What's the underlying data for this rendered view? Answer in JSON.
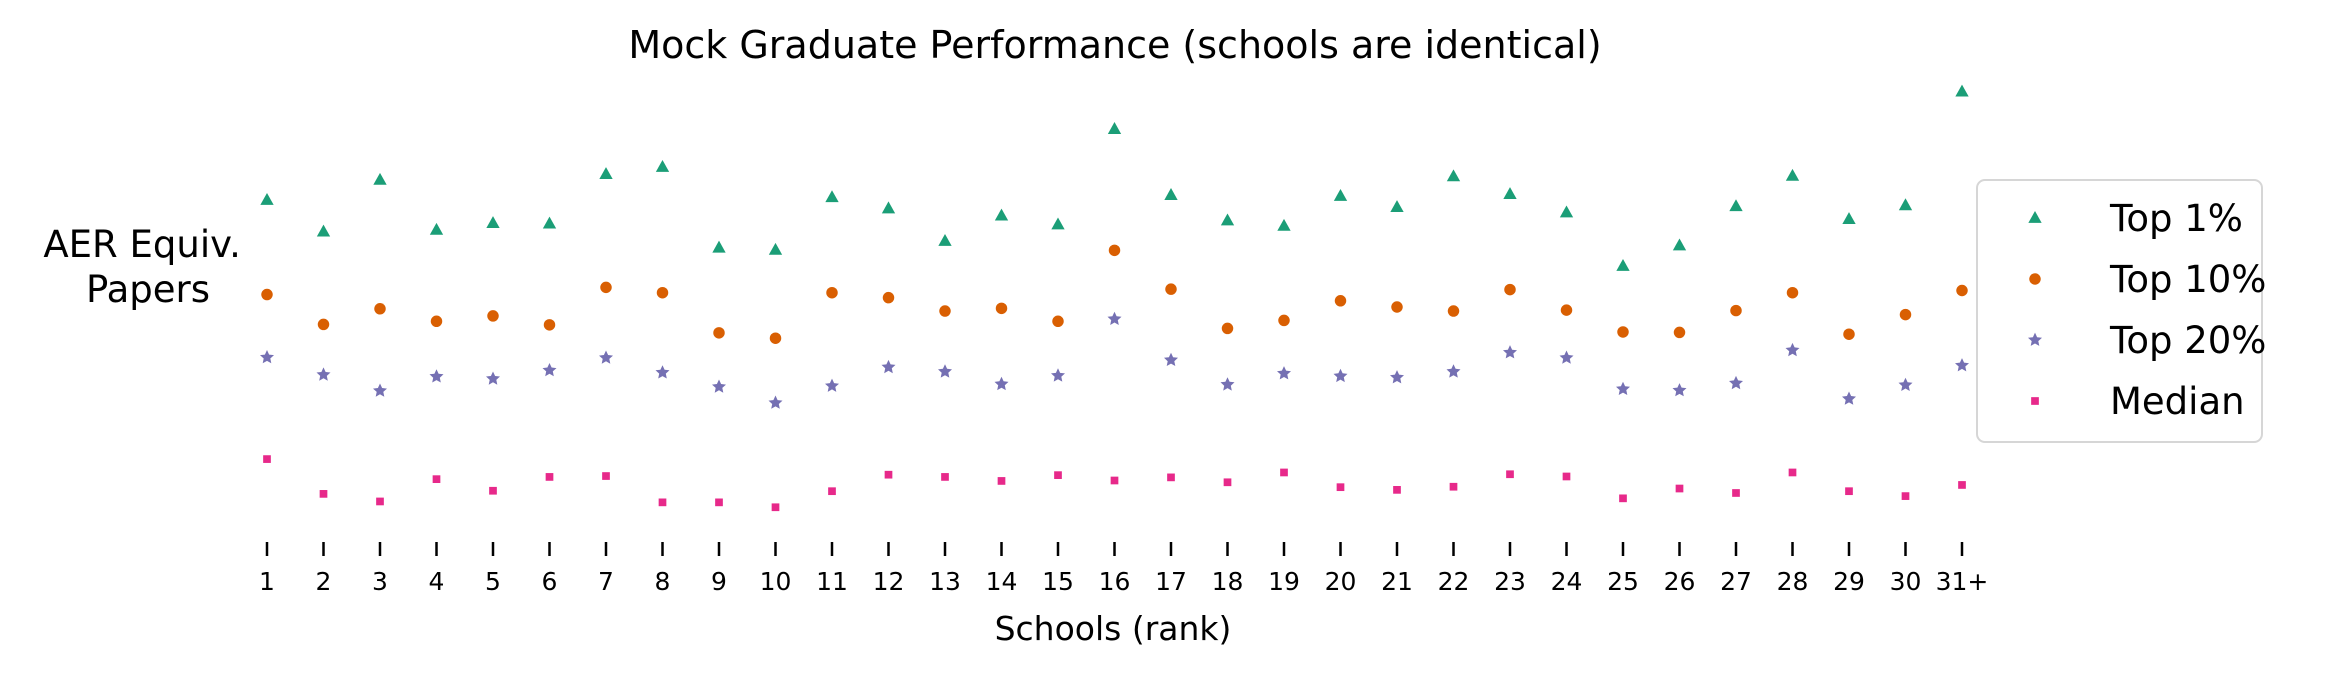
{
  "chart_data": {
    "type": "scatter",
    "title": "Mock Graduate Performance (schools are identical)",
    "xlabel": "Schools (rank)",
    "ylabel_lines": [
      "AER Equiv.",
      "Papers"
    ],
    "categories": [
      "1",
      "2",
      "3",
      "4",
      "5",
      "6",
      "7",
      "8",
      "9",
      "10",
      "11",
      "12",
      "13",
      "14",
      "15",
      "16",
      "17",
      "18",
      "19",
      "20",
      "21",
      "22",
      "23",
      "24",
      "25",
      "26",
      "27",
      "28",
      "29",
      "30",
      "31+"
    ],
    "ylim": [
      0,
      1
    ],
    "legend_position": "right",
    "series": [
      {
        "name": "Top 1%",
        "marker": "triangle",
        "color": "#1b9e77",
        "values": [
          0.74,
          0.669,
          0.785,
          0.673,
          0.688,
          0.687,
          0.798,
          0.814,
          0.633,
          0.628,
          0.746,
          0.721,
          0.648,
          0.705,
          0.685,
          0.899,
          0.751,
          0.694,
          0.682,
          0.749,
          0.724,
          0.793,
          0.753,
          0.712,
          0.592,
          0.638,
          0.726,
          0.794,
          0.697,
          0.728,
          0.983
        ]
      },
      {
        "name": "Top 10%",
        "marker": "circle",
        "color": "#d95f02",
        "values": [
          0.528,
          0.461,
          0.496,
          0.468,
          0.48,
          0.46,
          0.544,
          0.532,
          0.442,
          0.43,
          0.532,
          0.521,
          0.491,
          0.497,
          0.468,
          0.627,
          0.54,
          0.452,
          0.47,
          0.514,
          0.5,
          0.491,
          0.539,
          0.493,
          0.444,
          0.443,
          0.492,
          0.532,
          0.439,
          0.483,
          0.537
        ]
      },
      {
        "name": "Top 20%",
        "marker": "star",
        "color": "#7570b3",
        "values": [
          0.387,
          0.348,
          0.312,
          0.344,
          0.339,
          0.358,
          0.386,
          0.353,
          0.321,
          0.285,
          0.323,
          0.365,
          0.355,
          0.327,
          0.346,
          0.473,
          0.381,
          0.326,
          0.351,
          0.345,
          0.342,
          0.355,
          0.398,
          0.386,
          0.316,
          0.313,
          0.329,
          0.403,
          0.294,
          0.325,
          0.369
        ]
      },
      {
        "name": "Median",
        "marker": "square",
        "color": "#e7298a",
        "values": [
          0.159,
          0.081,
          0.064,
          0.114,
          0.088,
          0.119,
          0.121,
          0.062,
          0.062,
          0.051,
          0.087,
          0.124,
          0.119,
          0.11,
          0.123,
          0.111,
          0.118,
          0.107,
          0.129,
          0.096,
          0.09,
          0.097,
          0.125,
          0.12,
          0.071,
          0.093,
          0.083,
          0.129,
          0.087,
          0.076,
          0.101
        ]
      }
    ]
  }
}
